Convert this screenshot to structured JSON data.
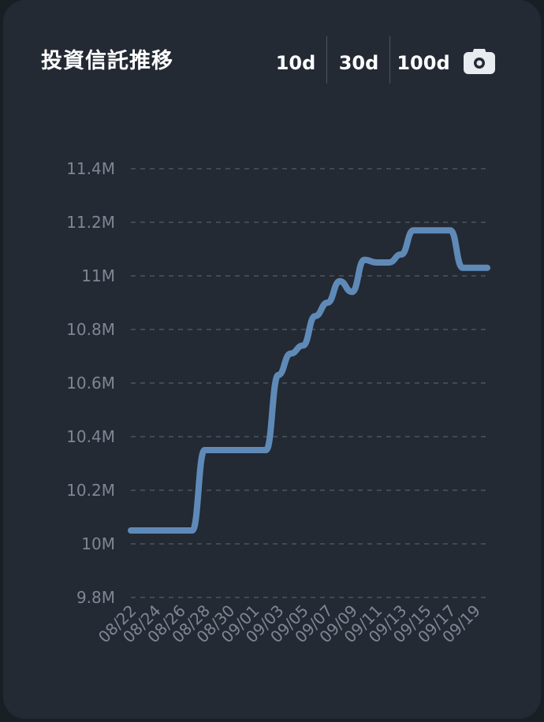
{
  "header": {
    "title": "投資信託推移",
    "ranges": [
      "10d",
      "30d",
      "100d"
    ]
  },
  "icons": {
    "screenshot": "camera-icon"
  },
  "colors": {
    "card_background": "#232a34",
    "line": "#5f8ab8",
    "grid": "#4a5462",
    "tick_label": "#7d8794",
    "title": "#ffffff"
  },
  "chart_data": {
    "type": "line",
    "x": [
      "08/22",
      "08/23",
      "08/24",
      "08/25",
      "08/26",
      "08/27",
      "08/28",
      "08/29",
      "08/30",
      "08/31",
      "09/01",
      "09/02",
      "09/03",
      "09/04",
      "09/05",
      "09/06",
      "09/07",
      "09/08",
      "09/09",
      "09/10",
      "09/11",
      "09/12",
      "09/13",
      "09/14",
      "09/15",
      "09/16",
      "09/17",
      "09/18",
      "09/19",
      "09/20"
    ],
    "x_tick_labels": [
      "08/22",
      "08/24",
      "08/26",
      "08/28",
      "08/30",
      "09/01",
      "09/03",
      "09/05",
      "09/07",
      "09/09",
      "09/11",
      "09/13",
      "09/15",
      "09/17",
      "09/19"
    ],
    "series": [
      {
        "values": [
          10.05,
          10.05,
          10.05,
          10.05,
          10.05,
          10.05,
          10.35,
          10.35,
          10.35,
          10.35,
          10.35,
          10.35,
          10.63,
          10.71,
          10.74,
          10.85,
          10.9,
          10.98,
          10.94,
          11.06,
          11.05,
          11.05,
          11.08,
          11.17,
          11.17,
          11.17,
          11.17,
          11.03,
          11.03,
          11.03
        ]
      }
    ],
    "y_ticks": [
      9.8,
      10.0,
      10.2,
      10.4,
      10.6,
      10.8,
      11.0,
      11.2,
      11.4
    ],
    "y_tick_labels": [
      "9.8M",
      "10M",
      "10.2M",
      "10.4M",
      "10.6M",
      "10.8M",
      "11M",
      "11.2M",
      "11.4M"
    ],
    "ylim": [
      9.8,
      11.4
    ],
    "grid": true,
    "legend": "none"
  }
}
